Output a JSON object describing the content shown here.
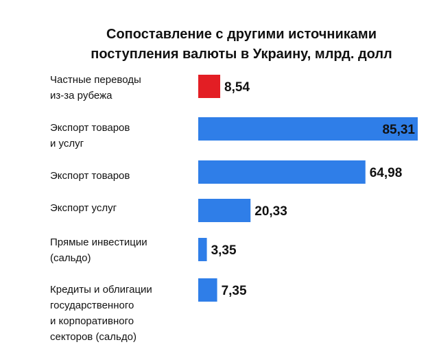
{
  "chart_data": {
    "type": "bar",
    "orientation": "horizontal",
    "title_lines": [
      "Сопоставление с другими источниками",
      "поступления валюты в Украину, млрд. долл"
    ],
    "categories": [
      [
        "Частные переводы",
        "из-за рубежа"
      ],
      [
        "Экспорт товаров",
        "и услуг"
      ],
      [
        "Экспорт товаров"
      ],
      [
        "Экспорт услуг"
      ],
      [
        "Прямые инвестиции",
        "(сальдо)"
      ],
      [
        "Кредиты и облигации",
        "государственного",
        "и корпоративного",
        "секторов (сальдо)"
      ]
    ],
    "values": [
      8.54,
      85.31,
      64.98,
      20.33,
      3.35,
      7.35
    ],
    "value_labels": [
      "8,54",
      "85,31",
      "64,98",
      "20,33",
      "3,35",
      "7,35"
    ],
    "colors": [
      "#e31e24",
      "#2f7ee8",
      "#2f7ee8",
      "#2f7ee8",
      "#2f7ee8",
      "#2f7ee8"
    ],
    "xlim": [
      0,
      85.31
    ],
    "grid": false,
    "legend": "none"
  }
}
